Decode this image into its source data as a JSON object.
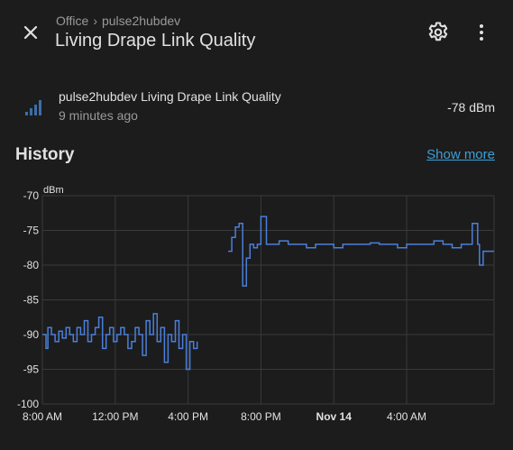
{
  "header": {
    "breadcrumb": [
      "Office",
      "pulse2hubdev"
    ],
    "breadcrumb_separator": "›",
    "title": "Living Drape Link Quality",
    "close_icon": "close-icon",
    "settings_icon": "gear-icon",
    "menu_icon": "more-vertical-icon"
  },
  "entity": {
    "icon": "signal-cellular-icon",
    "name": "pulse2hubdev Living Drape Link Quality",
    "last_changed": "9 minutes ago",
    "state": "-78 dBm"
  },
  "history": {
    "title": "History",
    "show_more": "Show more"
  },
  "colors": {
    "background": "#1c1c1c",
    "line": "#4a7fdc",
    "accent": "#3aa0d8",
    "icon_accent": "#3b6ea8"
  },
  "chart_data": {
    "type": "line",
    "ylabel": "dBm",
    "ylim": [
      -100,
      -70
    ],
    "yticks": [
      -70,
      -75,
      -80,
      -85,
      -90,
      -95,
      -100
    ],
    "xlim_hours": [
      8,
      32.8
    ],
    "xticks": [
      {
        "at": 8,
        "label": "8:00 AM",
        "bold": false
      },
      {
        "at": 12,
        "label": "12:00 PM",
        "bold": false
      },
      {
        "at": 16,
        "label": "4:00 PM",
        "bold": false
      },
      {
        "at": 20,
        "label": "8:00 PM",
        "bold": false
      },
      {
        "at": 24,
        "label": "Nov 14",
        "bold": true
      },
      {
        "at": 28,
        "label": "4:00 AM",
        "bold": false
      }
    ],
    "grid": true,
    "series": [
      {
        "x": [
          8.0,
          8.2,
          8.3,
          8.5,
          8.7,
          8.9,
          9.1,
          9.3,
          9.5,
          9.7,
          9.9,
          10.1,
          10.3,
          10.5,
          10.7,
          10.9,
          11.1,
          11.3,
          11.5,
          11.7,
          11.9,
          12.1,
          12.3,
          12.5,
          12.7,
          12.9,
          13.1,
          13.3,
          13.5,
          13.7,
          13.9,
          14.1,
          14.3,
          14.5,
          14.7,
          14.9,
          15.1,
          15.3,
          15.5,
          15.7,
          15.9,
          16.1,
          16.3,
          16.5
        ],
        "y": [
          -90,
          -92,
          -89,
          -90,
          -91,
          -89.5,
          -90.5,
          -89,
          -90,
          -91,
          -89,
          -90,
          -88,
          -91,
          -90,
          -89,
          -87.5,
          -92,
          -90,
          -89,
          -91,
          -90,
          -89,
          -90,
          -92,
          -91,
          -89,
          -90,
          -93,
          -88,
          -90,
          -87,
          -91,
          -89,
          -94,
          -90,
          -91,
          -88,
          -92,
          -90,
          -95,
          -91,
          -92,
          -91
        ]
      },
      {
        "x": [
          18.2,
          18.4,
          18.6,
          18.8,
          19.0,
          19.2,
          19.4,
          19.6,
          19.8,
          20.0,
          20.3,
          20.6,
          21.0,
          21.5,
          22.0,
          22.5,
          23.0,
          23.5,
          24.0,
          24.5,
          25.0,
          25.5,
          26.0,
          26.5,
          27.0,
          27.5,
          28.0,
          28.5,
          29.0,
          29.5,
          30.0,
          30.5,
          31.0,
          31.3,
          31.6,
          31.9,
          32.0,
          32.2,
          32.5,
          32.8
        ],
        "y": [
          -78,
          -76,
          -74.5,
          -74,
          -83,
          -79,
          -77,
          -77.5,
          -77,
          -73,
          -77,
          -77,
          -76.5,
          -77,
          -77,
          -77.5,
          -77,
          -77,
          -77.5,
          -77,
          -77,
          -77,
          -76.8,
          -77,
          -77,
          -77.5,
          -77,
          -77,
          -77,
          -76.5,
          -77,
          -77.5,
          -77,
          -77,
          -74,
          -77,
          -80,
          -78,
          -78,
          -78
        ]
      }
    ]
  }
}
